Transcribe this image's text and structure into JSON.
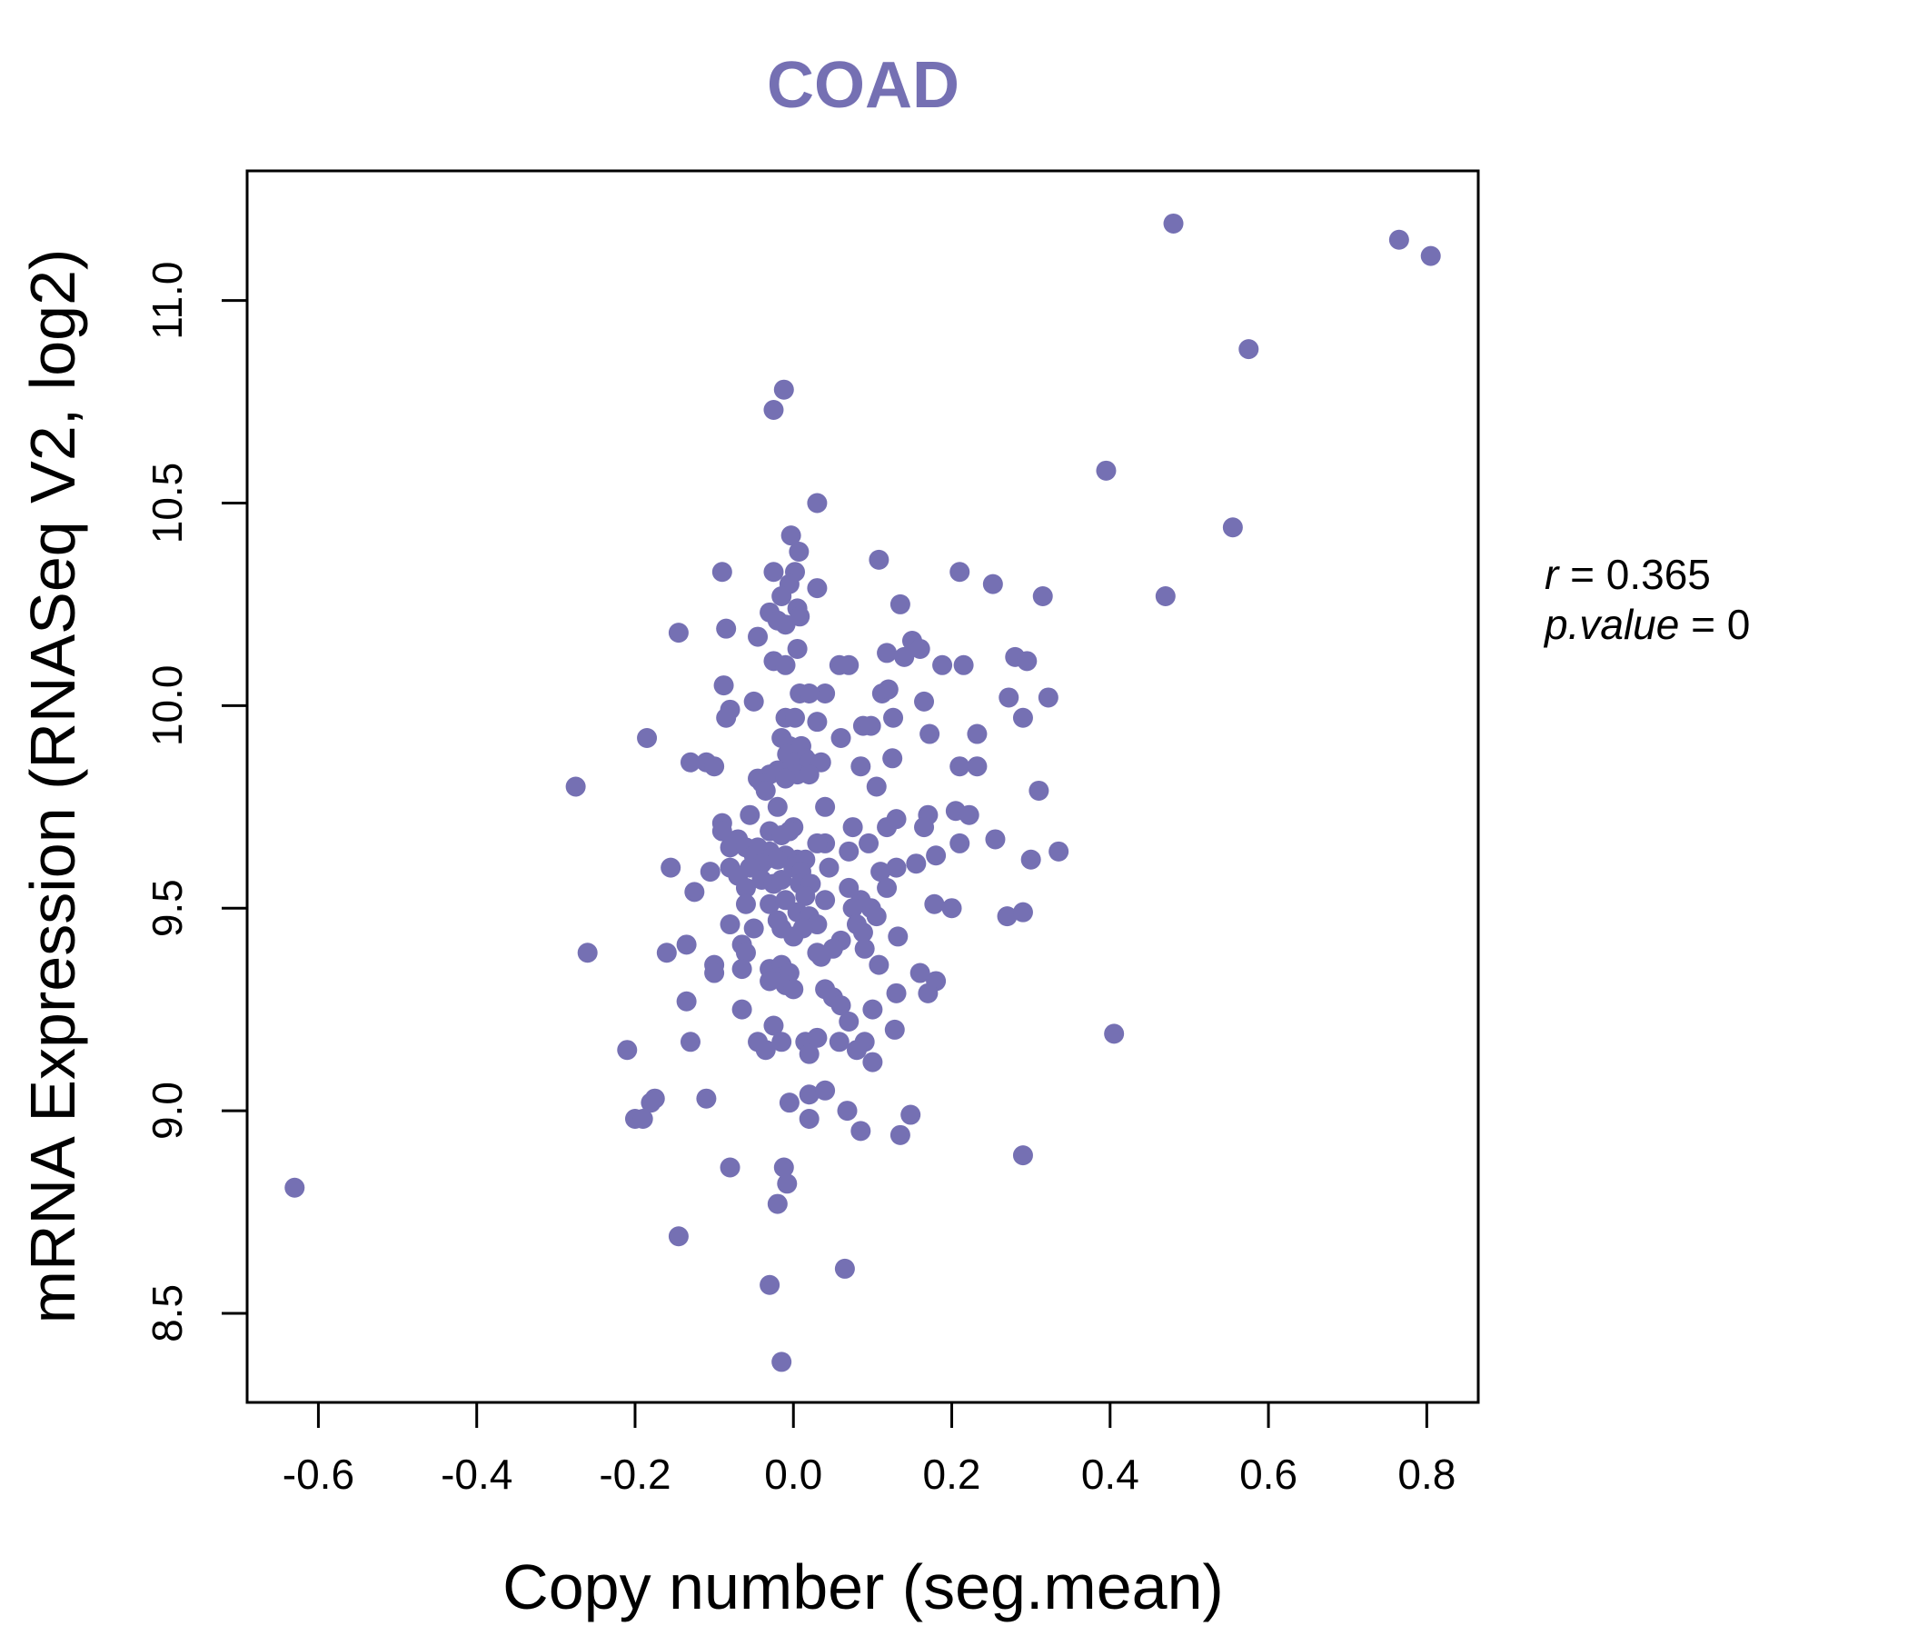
{
  "chart_data": {
    "type": "scatter",
    "title": "COAD",
    "xlabel": "Copy number (seg.mean)",
    "ylabel": "mRNA Expression (RNASeq V2, log2)",
    "xlim": [
      -0.69,
      0.865
    ],
    "ylim": [
      8.28,
      11.32
    ],
    "xticks": [
      -0.6,
      -0.4,
      -0.2,
      0.0,
      0.2,
      0.4,
      0.6,
      0.8
    ],
    "xtick_labels": [
      "-0.6",
      "-0.4",
      "-0.2",
      "0.0",
      "0.2",
      "0.4",
      "0.6",
      "0.8"
    ],
    "yticks": [
      8.5,
      9.0,
      9.5,
      10.0,
      10.5,
      11.0
    ],
    "ytick_labels": [
      "8.5",
      "9.0",
      "9.5",
      "10.0",
      "10.5",
      "11.0"
    ],
    "grid": false,
    "point_color": "#7570b3",
    "stats": {
      "r_label": "r",
      "r_value": "0.365",
      "p_label": "p.value",
      "p_value": "0"
    },
    "points": [
      [
        0.48,
        11.19
      ],
      [
        0.765,
        11.15
      ],
      [
        0.805,
        11.11
      ],
      [
        0.575,
        10.88
      ],
      [
        -0.012,
        10.78
      ],
      [
        -0.025,
        10.73
      ],
      [
        0.395,
        10.58
      ],
      [
        0.555,
        10.44
      ],
      [
        0.03,
        10.5
      ],
      [
        0.47,
        10.27
      ],
      [
        0.315,
        10.27
      ],
      [
        -0.003,
        10.42
      ],
      [
        0.007,
        10.38
      ],
      [
        0.108,
        10.36
      ],
      [
        0.21,
        10.33
      ],
      [
        0.252,
        10.3
      ],
      [
        -0.09,
        10.33
      ],
      [
        -0.025,
        10.33
      ],
      [
        0.002,
        10.33
      ],
      [
        0.03,
        10.29
      ],
      [
        -0.005,
        10.3
      ],
      [
        -0.015,
        10.27
      ],
      [
        0.005,
        10.24
      ],
      [
        -0.03,
        10.23
      ],
      [
        -0.01,
        10.2
      ],
      [
        0.008,
        10.22
      ],
      [
        -0.02,
        10.21
      ],
      [
        0.135,
        10.25
      ],
      [
        -0.145,
        10.18
      ],
      [
        -0.085,
        10.19
      ],
      [
        -0.045,
        10.17
      ],
      [
        0.15,
        10.16
      ],
      [
        0.16,
        10.14
      ],
      [
        0.005,
        10.14
      ],
      [
        0.118,
        10.13
      ],
      [
        0.28,
        10.12
      ],
      [
        0.295,
        10.11
      ],
      [
        -0.025,
        10.11
      ],
      [
        -0.01,
        10.1
      ],
      [
        0.07,
        10.1
      ],
      [
        0.058,
        10.1
      ],
      [
        0.14,
        10.12
      ],
      [
        0.188,
        10.1
      ],
      [
        0.215,
        10.1
      ],
      [
        -0.088,
        10.05
      ],
      [
        0.008,
        10.03
      ],
      [
        0.04,
        10.03
      ],
      [
        0.02,
        10.03
      ],
      [
        0.112,
        10.03
      ],
      [
        0.12,
        10.04
      ],
      [
        -0.05,
        10.01
      ],
      [
        0.165,
        10.01
      ],
      [
        0.272,
        10.02
      ],
      [
        0.322,
        10.02
      ],
      [
        -0.08,
        9.99
      ],
      [
        -0.085,
        9.97
      ],
      [
        -0.01,
        9.97
      ],
      [
        0.002,
        9.97
      ],
      [
        0.03,
        9.96
      ],
      [
        0.088,
        9.95
      ],
      [
        0.098,
        9.95
      ],
      [
        0.126,
        9.97
      ],
      [
        0.29,
        9.97
      ],
      [
        0.172,
        9.93
      ],
      [
        0.232,
        9.93
      ],
      [
        -0.185,
        9.92
      ],
      [
        -0.015,
        9.92
      ],
      [
        -0.005,
        9.9
      ],
      [
        0.01,
        9.9
      ],
      [
        0.06,
        9.92
      ],
      [
        -0.008,
        9.88
      ],
      [
        0.015,
        9.87
      ],
      [
        -0.13,
        9.86
      ],
      [
        -0.11,
        9.86
      ],
      [
        -0.1,
        9.85
      ],
      [
        0.0,
        9.86
      ],
      [
        0.02,
        9.86
      ],
      [
        0.035,
        9.86
      ],
      [
        0.085,
        9.85
      ],
      [
        0.125,
        9.87
      ],
      [
        0.21,
        9.85
      ],
      [
        0.232,
        9.85
      ],
      [
        -0.02,
        9.84
      ],
      [
        -0.03,
        9.83
      ],
      [
        0.005,
        9.83
      ],
      [
        0.02,
        9.83
      ],
      [
        -0.01,
        9.82
      ],
      [
        -0.045,
        9.82
      ],
      [
        -0.04,
        9.81
      ],
      [
        0.105,
        9.8
      ],
      [
        0.31,
        9.79
      ],
      [
        -0.275,
        9.8
      ],
      [
        -0.035,
        9.79
      ],
      [
        -0.02,
        9.75
      ],
      [
        0.04,
        9.75
      ],
      [
        0.17,
        9.73
      ],
      [
        0.205,
        9.74
      ],
      [
        0.222,
        9.73
      ],
      [
        -0.055,
        9.73
      ],
      [
        -0.09,
        9.71
      ],
      [
        0.0,
        9.7
      ],
      [
        -0.005,
        9.69
      ],
      [
        0.075,
        9.7
      ],
      [
        0.13,
        9.72
      ],
      [
        0.118,
        9.7
      ],
      [
        0.165,
        9.7
      ],
      [
        -0.09,
        9.69
      ],
      [
        -0.03,
        9.69
      ],
      [
        -0.015,
        9.68
      ],
      [
        0.095,
        9.66
      ],
      [
        0.21,
        9.66
      ],
      [
        0.255,
        9.67
      ],
      [
        0.04,
        9.66
      ],
      [
        0.03,
        9.66
      ],
      [
        0.07,
        9.64
      ],
      [
        -0.07,
        9.67
      ],
      [
        -0.08,
        9.65
      ],
      [
        -0.06,
        9.65
      ],
      [
        -0.045,
        9.65
      ],
      [
        -0.03,
        9.64
      ],
      [
        -0.035,
        9.62
      ],
      [
        -0.05,
        9.63
      ],
      [
        -0.01,
        9.63
      ],
      [
        -0.02,
        9.62
      ],
      [
        0.005,
        9.62
      ],
      [
        0.015,
        9.62
      ],
      [
        0.18,
        9.63
      ],
      [
        0.3,
        9.62
      ],
      [
        0.335,
        9.64
      ],
      [
        -0.04,
        9.61
      ],
      [
        -0.055,
        9.6
      ],
      [
        -0.08,
        9.6
      ],
      [
        -0.155,
        9.6
      ],
      [
        -0.105,
        9.59
      ],
      [
        0.0,
        9.6
      ],
      [
        0.01,
        9.59
      ],
      [
        0.045,
        9.6
      ],
      [
        0.11,
        9.59
      ],
      [
        0.13,
        9.6
      ],
      [
        0.155,
        9.61
      ],
      [
        -0.07,
        9.58
      ],
      [
        -0.04,
        9.57
      ],
      [
        -0.025,
        9.56
      ],
      [
        -0.015,
        9.57
      ],
      [
        0.008,
        9.56
      ],
      [
        0.022,
        9.56
      ],
      [
        0.07,
        9.55
      ],
      [
        0.118,
        9.55
      ],
      [
        -0.06,
        9.55
      ],
      [
        -0.125,
        9.54
      ],
      [
        0.015,
        9.53
      ],
      [
        0.04,
        9.52
      ],
      [
        0.085,
        9.52
      ],
      [
        0.098,
        9.5
      ],
      [
        0.178,
        9.51
      ],
      [
        0.2,
        9.5
      ],
      [
        0.075,
        9.5
      ],
      [
        -0.06,
        9.51
      ],
      [
        -0.03,
        9.51
      ],
      [
        -0.01,
        9.52
      ],
      [
        0.005,
        9.49
      ],
      [
        0.02,
        9.48
      ],
      [
        0.105,
        9.48
      ],
      [
        0.27,
        9.48
      ],
      [
        0.29,
        9.49
      ],
      [
        -0.08,
        9.46
      ],
      [
        -0.02,
        9.47
      ],
      [
        0.03,
        9.46
      ],
      [
        -0.05,
        9.45
      ],
      [
        -0.015,
        9.45
      ],
      [
        0.012,
        9.45
      ],
      [
        0.08,
        9.46
      ],
      [
        0.088,
        9.44
      ],
      [
        0.132,
        9.43
      ],
      [
        0.0,
        9.43
      ],
      [
        -0.135,
        9.41
      ],
      [
        -0.065,
        9.41
      ],
      [
        0.06,
        9.42
      ],
      [
        -0.16,
        9.39
      ],
      [
        -0.26,
        9.39
      ],
      [
        -0.06,
        9.39
      ],
      [
        0.03,
        9.39
      ],
      [
        0.05,
        9.4
      ],
      [
        0.09,
        9.4
      ],
      [
        0.035,
        9.38
      ],
      [
        -0.1,
        9.36
      ],
      [
        -0.03,
        9.35
      ],
      [
        -0.065,
        9.35
      ],
      [
        -0.015,
        9.36
      ],
      [
        0.108,
        9.36
      ],
      [
        -0.1,
        9.34
      ],
      [
        -0.02,
        9.33
      ],
      [
        -0.005,
        9.34
      ],
      [
        0.16,
        9.34
      ],
      [
        -0.03,
        9.32
      ],
      [
        0.18,
        9.32
      ],
      [
        -0.01,
        9.31
      ],
      [
        0.04,
        9.3
      ],
      [
        0.0,
        9.3
      ],
      [
        0.05,
        9.28
      ],
      [
        0.13,
        9.29
      ],
      [
        0.17,
        9.29
      ],
      [
        -0.135,
        9.27
      ],
      [
        0.06,
        9.26
      ],
      [
        0.1,
        9.25
      ],
      [
        -0.065,
        9.25
      ],
      [
        0.07,
        9.22
      ],
      [
        -0.025,
        9.21
      ],
      [
        0.128,
        9.2
      ],
      [
        0.405,
        9.19
      ],
      [
        0.015,
        9.17
      ],
      [
        0.03,
        9.18
      ],
      [
        0.058,
        9.17
      ],
      [
        0.09,
        9.17
      ],
      [
        -0.045,
        9.17
      ],
      [
        -0.13,
        9.17
      ],
      [
        -0.015,
        9.17
      ],
      [
        -0.035,
        9.15
      ],
      [
        -0.21,
        9.15
      ],
      [
        0.02,
        9.14
      ],
      [
        0.08,
        9.15
      ],
      [
        0.1,
        9.12
      ],
      [
        -0.175,
        9.03
      ],
      [
        -0.18,
        9.02
      ],
      [
        -0.11,
        9.03
      ],
      [
        0.02,
        9.04
      ],
      [
        0.04,
        9.05
      ],
      [
        -0.005,
        9.02
      ],
      [
        -0.2,
        8.98
      ],
      [
        -0.19,
        8.98
      ],
      [
        0.02,
        8.98
      ],
      [
        0.068,
        9.0
      ],
      [
        0.148,
        8.99
      ],
      [
        0.085,
        8.95
      ],
      [
        0.135,
        8.94
      ],
      [
        0.29,
        8.89
      ],
      [
        -0.08,
        8.86
      ],
      [
        -0.012,
        8.86
      ],
      [
        -0.008,
        8.82
      ],
      [
        -0.02,
        8.77
      ],
      [
        -0.63,
        8.81
      ],
      [
        -0.145,
        8.69
      ],
      [
        0.065,
        8.61
      ],
      [
        -0.03,
        8.57
      ],
      [
        -0.015,
        8.38
      ]
    ]
  }
}
